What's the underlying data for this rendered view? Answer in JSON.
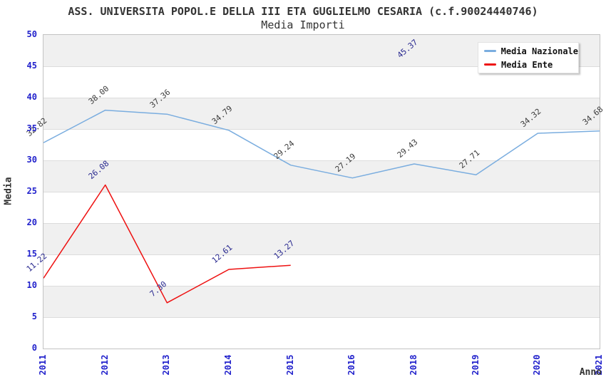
{
  "header": {
    "title": "ASS. UNIVERSITA POPOL.E DELLA III ETA GUGLIELMO CESARIA (c.f.90024440746)",
    "subtitle": "Media Importi"
  },
  "axes": {
    "y_title": "Media",
    "x_title": "Anno"
  },
  "legend": {
    "items": [
      {
        "label": "Media Nazionale",
        "color": "#7aaddf"
      },
      {
        "label": "Media Ente",
        "color": "#ee1111"
      }
    ]
  },
  "colors": {
    "axis_tick_text": "#2222cc",
    "band_fill": "#f0f0f0",
    "gridline": "#dcdcdc",
    "plot_border": "#c3c3c3",
    "title_text": "#333333"
  },
  "chart_data": {
    "type": "line",
    "title": "ASS. UNIVERSITA POPOL.E DELLA III ETA GUGLIELMO CESARIA (c.f.90024440746)",
    "subtitle": "Media Importi",
    "xlabel": "Anno",
    "ylabel": "Media",
    "categories": [
      "2011",
      "2012",
      "2013",
      "2014",
      "2015",
      "2016",
      "2018",
      "2019",
      "2020",
      "2021"
    ],
    "series": [
      {
        "name": "Media Nazionale",
        "color": "#7aaddf",
        "label_color": "#3c3c3c",
        "values": [
          32.82,
          38.0,
          37.36,
          34.79,
          29.24,
          27.19,
          29.43,
          27.71,
          34.32,
          34.68
        ]
      },
      {
        "name": "Media Ente",
        "color": "#ee1111",
        "label_color": "#28288f",
        "values": [
          11.22,
          26.08,
          7.3,
          12.61,
          13.27,
          null,
          45.37,
          null,
          null,
          null
        ]
      }
    ],
    "ylim": [
      0,
      50
    ],
    "y_tick_step": 5,
    "grid": "horizontal-bands-alternating",
    "legend_position": "top-right",
    "point_labels": "values shown rotated ~40deg above each point, 2 decimals"
  }
}
